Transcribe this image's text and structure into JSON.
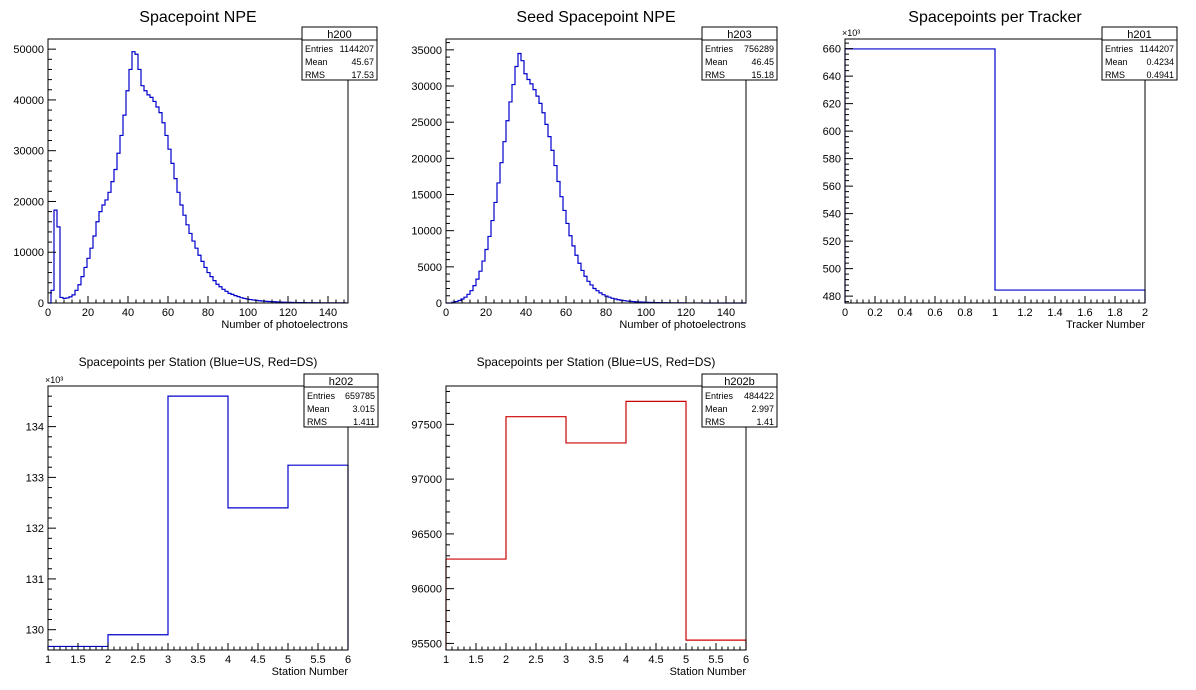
{
  "colors": {
    "blue": "#0000cc",
    "red": "#cc0000",
    "axis": "#000000",
    "background": "#ffffff"
  },
  "chart_data": [
    {
      "type": "histogram",
      "title": "Spacepoint NPE",
      "xlabel": "Number of photoelectrons",
      "ylabel": "",
      "xlim": [
        0,
        150
      ],
      "ylim": [
        0,
        52000
      ],
      "xticks": [
        0,
        20,
        40,
        60,
        80,
        100,
        120,
        140
      ],
      "yticks": [
        0,
        10000,
        20000,
        30000,
        40000,
        50000
      ],
      "ytick_labels": [
        "0",
        "10000",
        "20000",
        "30000",
        "40000",
        "50000"
      ],
      "y_exponent": "",
      "line_color": "#0000cc",
      "bin_edges_start": 0,
      "bin_width": 1.5,
      "values": [
        0,
        2500,
        18300,
        15000,
        1100,
        900,
        1000,
        1200,
        1600,
        2500,
        3600,
        5200,
        7000,
        8800,
        10800,
        13200,
        16000,
        18000,
        19300,
        20300,
        21800,
        23900,
        26300,
        29500,
        33000,
        37000,
        41800,
        46000,
        49500,
        49000,
        46000,
        42800,
        41800,
        41000,
        40500,
        39700,
        38600,
        37500,
        35500,
        33000,
        30300,
        27500,
        24500,
        21800,
        19300,
        17300,
        15400,
        13700,
        12200,
        10800,
        9400,
        8200,
        7000,
        6000,
        5200,
        4400,
        3700,
        3200,
        2700,
        2300,
        1900,
        1700,
        1450,
        1250,
        1050,
        900,
        780,
        680,
        600,
        520,
        450,
        400,
        350,
        300,
        270,
        240,
        200,
        180,
        160,
        140,
        120,
        110,
        100,
        90,
        80,
        70,
        60,
        55,
        50,
        45,
        40,
        35,
        30,
        28,
        26,
        24,
        22,
        20,
        18,
        16
      ],
      "stats": {
        "name": "h200",
        "entries": "1144207",
        "mean": "45.67",
        "rms": "17.53"
      }
    },
    {
      "type": "histogram",
      "title": "Seed Spacepoint NPE",
      "xlabel": "Number of photoelectrons",
      "ylabel": "",
      "xlim": [
        0,
        150
      ],
      "ylim": [
        0,
        36500
      ],
      "xticks": [
        0,
        20,
        40,
        60,
        80,
        100,
        120,
        140
      ],
      "yticks": [
        0,
        5000,
        10000,
        15000,
        20000,
        25000,
        30000,
        35000
      ],
      "ytick_labels": [
        "0",
        "5000",
        "10000",
        "15000",
        "20000",
        "25000",
        "30000",
        "35000"
      ],
      "y_exponent": "",
      "line_color": "#0000cc",
      "bin_edges_start": 0,
      "bin_width": 1.5,
      "values": [
        0,
        0,
        100,
        200,
        350,
        550,
        800,
        1200,
        1700,
        2400,
        3300,
        4400,
        5800,
        7400,
        9200,
        11400,
        13900,
        16600,
        19400,
        22300,
        25200,
        27800,
        30200,
        32700,
        34500,
        33500,
        31700,
        30900,
        30300,
        29500,
        28600,
        27600,
        26300,
        24700,
        23000,
        21100,
        19000,
        16800,
        14700,
        12800,
        11000,
        9300,
        7900,
        6600,
        5500,
        4500,
        3700,
        3000,
        2500,
        2000,
        1700,
        1400,
        1150,
        950,
        800,
        650,
        550,
        450,
        380,
        320,
        270,
        230,
        190,
        160,
        140,
        120,
        100,
        85,
        70,
        60,
        50,
        42,
        36,
        30,
        26,
        22,
        19,
        16,
        14,
        12,
        10,
        9,
        8,
        7,
        6,
        5,
        4,
        4,
        3,
        3,
        2,
        2,
        2,
        2,
        1,
        1,
        1,
        1,
        1,
        0
      ],
      "stats": {
        "name": "h203",
        "entries": "756289",
        "mean": "46.45",
        "rms": "15.18"
      }
    },
    {
      "type": "histogram",
      "title": "Spacepoints per Tracker",
      "xlabel": "Tracker Number",
      "ylabel": "",
      "xlim": [
        0,
        2
      ],
      "ylim": [
        475,
        667
      ],
      "xticks": [
        0,
        0.2,
        0.4,
        0.6,
        0.8,
        1,
        1.2,
        1.4,
        1.6,
        1.8,
        2
      ],
      "yticks": [
        480,
        500,
        520,
        540,
        560,
        580,
        600,
        620,
        640,
        660
      ],
      "ytick_labels": [
        "480",
        "500",
        "520",
        "540",
        "560",
        "580",
        "600",
        "620",
        "640",
        "660"
      ],
      "y_exponent": "×10³",
      "line_color": "#0000cc",
      "bin_edges_start": 0,
      "bin_width": 1,
      "values": [
        659.785,
        484.422
      ],
      "stats": {
        "name": "h201",
        "entries": "1144207",
        "mean": "0.4234",
        "rms": "0.4941"
      }
    },
    {
      "type": "histogram",
      "title": "Spacepoints per Station (Blue=US, Red=DS)",
      "xlabel": "Station Number",
      "ylabel": "",
      "xlim": [
        1,
        6
      ],
      "ylim": [
        129.6,
        134.8
      ],
      "xticks": [
        1,
        1.5,
        2,
        2.5,
        3,
        3.5,
        4,
        4.5,
        5,
        5.5,
        6
      ],
      "yticks": [
        130,
        131,
        132,
        133,
        134
      ],
      "ytick_labels": [
        "130",
        "131",
        "132",
        "133",
        "134"
      ],
      "y_exponent": "×10³",
      "line_color": "#0000cc",
      "bin_edges_start": 1,
      "bin_width": 1,
      "values": [
        129.67,
        129.9,
        134.6,
        132.4,
        133.24
      ],
      "stats": {
        "name": "h202",
        "entries": "659785",
        "mean": "3.015",
        "rms": "1.411"
      }
    },
    {
      "type": "histogram",
      "title": "Spacepoints per Station (Blue=US, Red=DS)",
      "xlabel": "Station Number",
      "ylabel": "",
      "xlim": [
        1,
        6
      ],
      "ylim": [
        95440,
        97850
      ],
      "xticks": [
        1,
        1.5,
        2,
        2.5,
        3,
        3.5,
        4,
        4.5,
        5,
        5.5,
        6
      ],
      "yticks": [
        95500,
        96000,
        96500,
        97000,
        97500
      ],
      "ytick_labels": [
        "95500",
        "96000",
        "96500",
        "97000",
        "97500"
      ],
      "y_exponent": "",
      "line_color": "#cc0000",
      "bin_edges_start": 1,
      "bin_width": 1,
      "values": [
        96270,
        97570,
        97330,
        97710,
        95530
      ],
      "stats": {
        "name": "h202b",
        "entries": "484422",
        "mean": "2.997",
        "rms": "1.41"
      }
    }
  ]
}
